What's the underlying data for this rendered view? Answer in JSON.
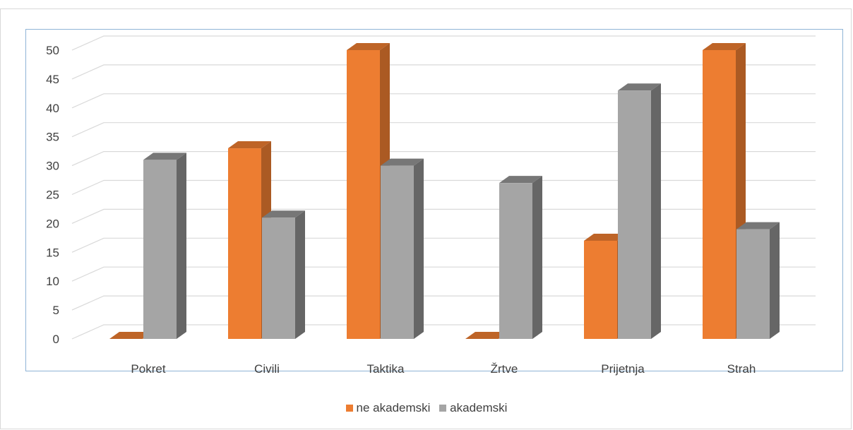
{
  "chart_data": {
    "type": "bar",
    "title": "",
    "xlabel": "",
    "ylabel": "",
    "categories": [
      "Pokret",
      "Civili",
      "Taktika",
      "Žrtve",
      "Prijetnja",
      "Strah"
    ],
    "series": [
      {
        "name": "ne akademski",
        "values": [
          0,
          33,
          50,
          0,
          17,
          50
        ],
        "color": "#ed7d31"
      },
      {
        "name": "akademski",
        "values": [
          31,
          21,
          30,
          27,
          43,
          19
        ],
        "color": "#a5a5a5"
      }
    ],
    "ylim": [
      0,
      50
    ],
    "yticks": [
      0,
      5,
      10,
      15,
      20,
      25,
      30,
      35,
      40,
      45,
      50
    ],
    "grid": true,
    "legend_position": "bottom"
  }
}
